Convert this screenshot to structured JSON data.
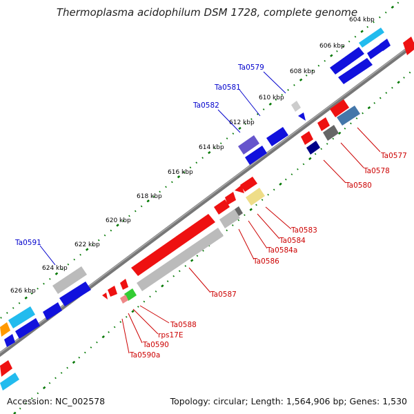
{
  "title": "Thermoplasma acidophilum DSM 1728, complete genome",
  "footer": {
    "accession": "Accession: NC_002578",
    "topology": "Topology: circular; Length: 1,564,906 bp; Genes: 1,530"
  },
  "scale_labels": [
    "604 kbp",
    "606 kbp",
    "608 kbp",
    "610 kbp",
    "612 kbp",
    "614 kbp",
    "616 kbp",
    "618 kbp",
    "620 kbp",
    "622 kbp",
    "624 kbp",
    "626 kbp"
  ],
  "gene_labels_top": [
    "Ta0579",
    "Ta0581",
    "Ta0582",
    "Ta0591"
  ],
  "gene_labels_bottom": [
    "Ta0577",
    "Ta0578",
    "Ta0580",
    "Ta0583",
    "Ta0584",
    "Ta0584a",
    "Ta0586",
    "Ta0587",
    "Ta0588",
    "rps17E",
    "Ta0590",
    "Ta0590a"
  ],
  "colors": {
    "red": "#ee1111",
    "blue": "#1111dd",
    "cyan": "#22bbee",
    "grey": "#bbbbbb",
    "dark_grey": "#666666",
    "slate": "#4477aa",
    "purple": "#6655cc",
    "green": "#33cc33",
    "yellow": "#eedd88",
    "orange": "#ff9900",
    "navy": "#000088",
    "pink": "#ee8888",
    "tick": "#007700",
    "label_blue": "#0000cc",
    "label_red": "#cc0000"
  }
}
